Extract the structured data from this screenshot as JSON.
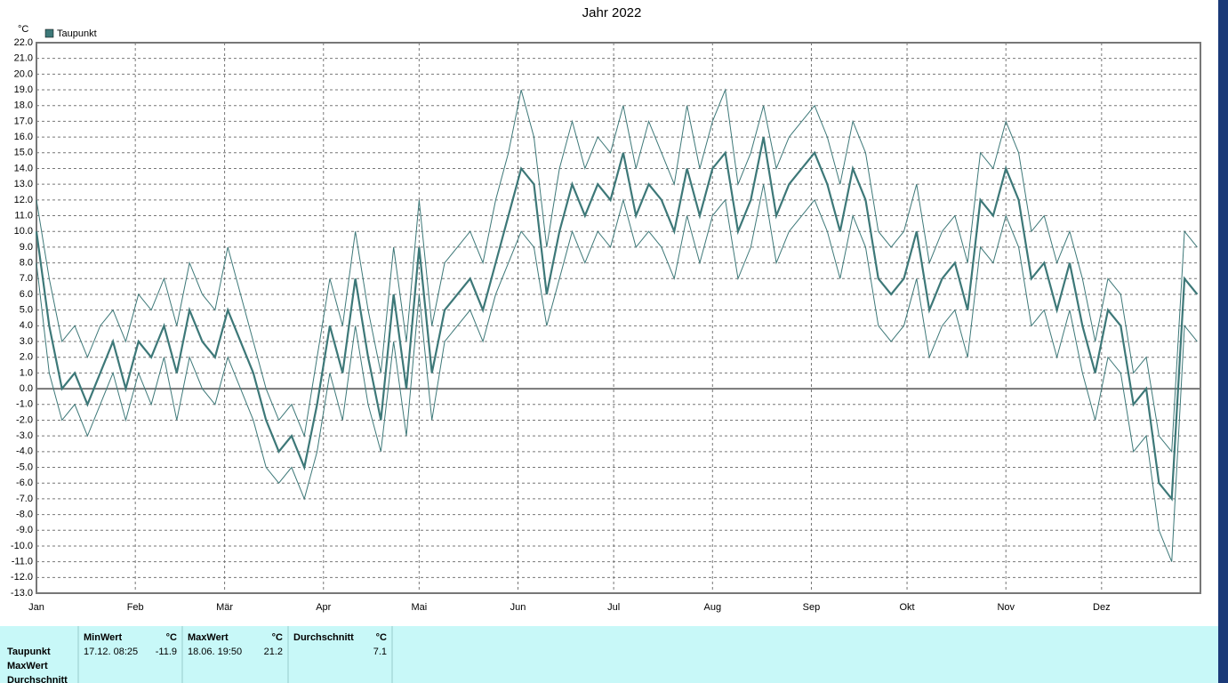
{
  "chart_data": {
    "type": "line",
    "title": "Jahr 2022",
    "y_unit": "°C",
    "x": [
      1,
      5,
      9,
      13,
      17,
      21,
      25,
      29,
      33,
      37,
      41,
      45,
      49,
      53,
      57,
      61,
      65,
      69,
      73,
      77,
      81,
      85,
      89,
      93,
      97,
      101,
      105,
      109,
      113,
      117,
      121,
      125,
      129,
      133,
      137,
      141,
      145,
      149,
      153,
      157,
      161,
      165,
      169,
      173,
      177,
      181,
      185,
      189,
      193,
      197,
      201,
      205,
      209,
      213,
      217,
      221,
      225,
      229,
      233,
      237,
      241,
      245,
      249,
      253,
      257,
      261,
      265,
      269,
      273,
      277,
      281,
      285,
      289,
      293,
      297,
      301,
      305,
      309,
      313,
      317,
      321,
      325,
      329,
      333,
      337,
      341,
      345,
      349,
      353,
      357,
      361,
      365
    ],
    "series": [
      {
        "name": "Taupunkt",
        "color": "#3d7878",
        "values": [
          10,
          4,
          0,
          1,
          -1,
          1,
          3,
          0,
          3,
          2,
          4,
          1,
          5,
          3,
          2,
          5,
          3,
          1,
          -2,
          -4,
          -3,
          -5,
          -1,
          4,
          1,
          7,
          2,
          -2,
          6,
          0,
          9,
          1,
          5,
          6,
          7,
          5,
          8,
          11,
          14,
          13,
          6,
          10,
          13,
          11,
          13,
          12,
          15,
          11,
          13,
          12,
          10,
          14,
          11,
          14,
          15,
          10,
          12,
          16,
          11,
          13,
          14,
          15,
          13,
          10,
          14,
          12,
          7,
          6,
          7,
          10,
          5,
          7,
          8,
          5,
          12,
          11,
          14,
          12,
          7,
          8,
          5,
          8,
          4,
          1,
          5,
          4,
          -1,
          0,
          -6,
          -7,
          7,
          6
        ]
      },
      {
        "color": "#3d7878",
        "values": [
          12,
          7,
          3,
          4,
          2,
          4,
          5,
          3,
          6,
          5,
          7,
          4,
          8,
          6,
          5,
          9,
          6,
          3,
          0,
          -2,
          -1,
          -3,
          2,
          7,
          4,
          10,
          5,
          1,
          9,
          3,
          12,
          4,
          8,
          9,
          10,
          8,
          12,
          15,
          19,
          16,
          9,
          14,
          17,
          14,
          16,
          15,
          18,
          14,
          17,
          15,
          13,
          18,
          14,
          17,
          19,
          13,
          15,
          18,
          14,
          16,
          17,
          18,
          16,
          13,
          17,
          15,
          10,
          9,
          10,
          13,
          8,
          10,
          11,
          8,
          15,
          14,
          17,
          15,
          10,
          11,
          8,
          10,
          7,
          3,
          7,
          6,
          1,
          2,
          -3,
          -4,
          10,
          9
        ]
      },
      {
        "color": "#3d7878",
        "values": [
          8,
          1,
          -2,
          -1,
          -3,
          -1,
          1,
          -2,
          1,
          -1,
          2,
          -2,
          2,
          0,
          -1,
          2,
          0,
          -2,
          -5,
          -6,
          -5,
          -7,
          -4,
          1,
          -2,
          4,
          -1,
          -4,
          3,
          -3,
          6,
          -2,
          3,
          4,
          5,
          3,
          6,
          8,
          10,
          9,
          4,
          7,
          10,
          8,
          10,
          9,
          12,
          9,
          10,
          9,
          7,
          11,
          8,
          11,
          12,
          7,
          9,
          13,
          8,
          10,
          11,
          12,
          10,
          7,
          11,
          9,
          4,
          3,
          4,
          7,
          2,
          4,
          5,
          2,
          9,
          8,
          11,
          9,
          4,
          5,
          2,
          5,
          1,
          -2,
          2,
          1,
          -4,
          -3,
          -9,
          -11,
          4,
          3
        ]
      }
    ],
    "xlim": [
      1,
      366
    ],
    "xticks": [
      {
        "value": 1,
        "label": "Jan"
      },
      {
        "value": 32,
        "label": "Feb"
      },
      {
        "value": 60,
        "label": "Mär"
      },
      {
        "value": 91,
        "label": "Apr"
      },
      {
        "value": 121,
        "label": "Mai"
      },
      {
        "value": 152,
        "label": "Jun"
      },
      {
        "value": 182,
        "label": "Jul"
      },
      {
        "value": 213,
        "label": "Aug"
      },
      {
        "value": 244,
        "label": "Sep"
      },
      {
        "value": 274,
        "label": "Okt"
      },
      {
        "value": 305,
        "label": "Nov"
      },
      {
        "value": 335,
        "label": "Dez"
      }
    ],
    "ylim": [
      -13,
      22
    ],
    "yticks": [
      {
        "value": 22,
        "label": "22.0"
      },
      {
        "value": 21,
        "label": "21.0"
      },
      {
        "value": 20,
        "label": "20.0"
      },
      {
        "value": 19,
        "label": "19.0"
      },
      {
        "value": 18,
        "label": "18.0"
      },
      {
        "value": 17,
        "label": "17.0"
      },
      {
        "value": 16,
        "label": "16.0"
      },
      {
        "value": 15,
        "label": "15.0"
      },
      {
        "value": 14,
        "label": "14.0"
      },
      {
        "value": 13,
        "label": "13.0"
      },
      {
        "value": 12,
        "label": "12.0"
      },
      {
        "value": 11,
        "label": "11.0"
      },
      {
        "value": 10,
        "label": "10.0"
      },
      {
        "value": 9,
        "label": "9.0"
      },
      {
        "value": 8,
        "label": "8.0"
      },
      {
        "value": 7,
        "label": "7.0"
      },
      {
        "value": 6,
        "label": "6.0"
      },
      {
        "value": 5,
        "label": "5.0"
      },
      {
        "value": 4,
        "label": "4.0"
      },
      {
        "value": 3,
        "label": "3.0"
      },
      {
        "value": 2,
        "label": "2.0"
      },
      {
        "value": 1,
        "label": "1.0"
      },
      {
        "value": 0,
        "label": "0.0"
      },
      {
        "value": -1,
        "label": "-1.0"
      },
      {
        "value": -2,
        "label": "-2.0"
      },
      {
        "value": -3,
        "label": "-3.0"
      },
      {
        "value": -4,
        "label": "-4.0"
      },
      {
        "value": -5,
        "label": "-5.0"
      },
      {
        "value": -6,
        "label": "-6.0"
      },
      {
        "value": -7,
        "label": "-7.0"
      },
      {
        "value": -8,
        "label": "-8.0"
      },
      {
        "value": -9,
        "label": "-9.0"
      },
      {
        "value": -10,
        "label": "-10.0"
      },
      {
        "value": -11,
        "label": "-11.0"
      },
      {
        "value": -12,
        "label": "-12.0"
      },
      {
        "value": -13,
        "label": "-13.0"
      }
    ],
    "grid": true
  },
  "table": {
    "row_labels": [
      "Taupunkt",
      "MaxWert",
      "Durchschnitt"
    ],
    "columns": [
      {
        "header": "MinWert",
        "unit": "°C",
        "time": "17.12.  08:25",
        "value": -11.9
      },
      {
        "header": "MaxWert",
        "unit": "°C",
        "time": "18.06.  19:50",
        "value": 21.2
      },
      {
        "header": "Durchschnitt",
        "unit": "°C",
        "value": 7.1
      }
    ]
  }
}
